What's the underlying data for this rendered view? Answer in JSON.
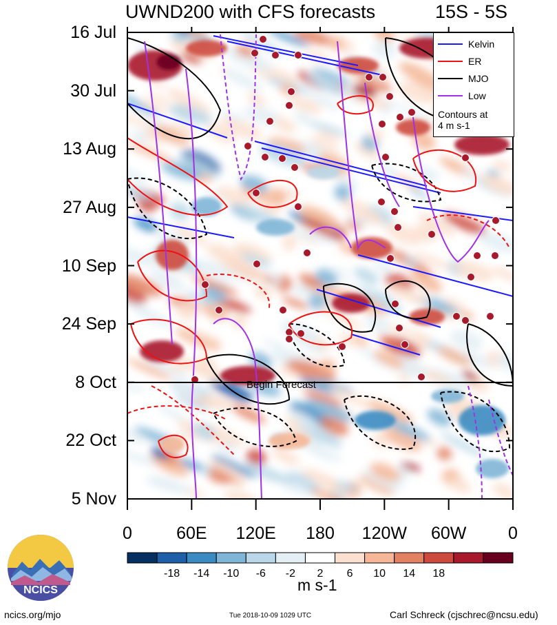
{
  "title": {
    "left": "UWND200 with CFS forecasts",
    "right": "15S - 5S"
  },
  "chart_data": {
    "type": "heatmap",
    "title": "UWND200 with CFS forecasts",
    "subtitle": "15S - 5S",
    "x_ticks": [
      "0",
      "60E",
      "120E",
      "180",
      "120W",
      "60W",
      "0"
    ],
    "y_ticks": [
      "16 Jul",
      "30 Jul",
      "13 Aug",
      "27 Aug",
      "10 Sep",
      "24 Sep",
      "8 Oct",
      "22 Oct",
      "5 Nov"
    ],
    "colorbar": {
      "labels": [
        "-18",
        "-14",
        "-10",
        "-6",
        "-2",
        "2",
        "6",
        "10",
        "14",
        "18"
      ],
      "unit": "m s-1",
      "colors": [
        "#053061",
        "#1f5ea8",
        "#3b8bc2",
        "#7fb5d6",
        "#b9d7e8",
        "#e3eef5",
        "#ffffff",
        "#fbe0d0",
        "#f5b797",
        "#e38263",
        "#cd4a3f",
        "#a8192b",
        "#67001f"
      ]
    },
    "forecast_line": {
      "date": "8 Oct",
      "label": "Begin Forecast"
    },
    "legend": {
      "position": "top-right",
      "entries": [
        {
          "name": "Kelvin",
          "color": "#1a1aff"
        },
        {
          "name": "ER",
          "color": "#ee1111"
        },
        {
          "name": "MJO",
          "color": "#000000"
        },
        {
          "name": "Low",
          "color": "#a030e6"
        }
      ],
      "note_lines": [
        "Contours at",
        "4 m s-1"
      ]
    }
  },
  "footer": {
    "left": "ncics.org/mjo",
    "middle": "Tue 2018-10-09 1029 UTC",
    "right": "Carl Schreck (cjschrec@ncsu.edu)"
  },
  "logo": {
    "text": "NCICS"
  }
}
